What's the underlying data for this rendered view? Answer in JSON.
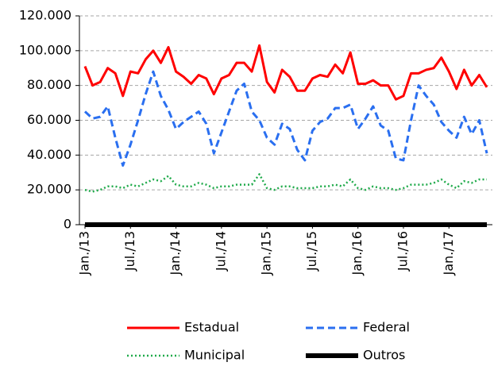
{
  "chart_data": {
    "type": "line",
    "categories": [
      "Jan./13",
      null,
      null,
      null,
      null,
      null,
      "Jul./13",
      null,
      null,
      null,
      null,
      null,
      "Jan./14",
      null,
      null,
      null,
      null,
      null,
      "Jul./14",
      null,
      null,
      null,
      null,
      null,
      "Jan./15",
      null,
      null,
      null,
      null,
      null,
      "Jul./15",
      null,
      null,
      null,
      null,
      null,
      "Jan./16",
      null,
      null,
      null,
      null,
      null,
      "Jul./16",
      null,
      null,
      null,
      null,
      null,
      "Jan./17",
      null,
      null,
      null,
      null,
      null
    ],
    "series": [
      {
        "name": "Estadual",
        "color": "#ff0000",
        "style": "solid",
        "values": [
          91000,
          80000,
          82000,
          90000,
          87000,
          74000,
          88000,
          87000,
          95000,
          100000,
          93000,
          102000,
          88000,
          85000,
          81000,
          86000,
          84000,
          75000,
          84000,
          86000,
          93000,
          93000,
          88000,
          103000,
          82000,
          76000,
          89000,
          85000,
          77000,
          77000,
          84000,
          86000,
          85000,
          92000,
          87000,
          99000,
          81000,
          81000,
          83000,
          80000,
          80000,
          72000,
          74000,
          87000,
          87000,
          89000,
          90000,
          96000,
          88000,
          78000,
          89000,
          80000,
          86000,
          79000
        ]
      },
      {
        "name": "Federal",
        "color": "#2a6ff0",
        "style": "dashed",
        "values": [
          65000,
          61000,
          62000,
          68000,
          50000,
          34000,
          46000,
          60000,
          75000,
          88000,
          74000,
          66000,
          55000,
          59000,
          62000,
          65000,
          58000,
          41000,
          53000,
          65000,
          77000,
          81000,
          65000,
          60000,
          50000,
          46000,
          58000,
          55000,
          43000,
          37000,
          54000,
          59000,
          61000,
          67000,
          67000,
          69000,
          55000,
          61000,
          68000,
          57000,
          54000,
          38000,
          37000,
          60000,
          80000,
          74000,
          69000,
          59000,
          54000,
          50000,
          62000,
          52000,
          60000,
          41000
        ]
      },
      {
        "name": "Municipal",
        "color": "#1faa4a",
        "style": "dotted",
        "values": [
          20000,
          19000,
          20000,
          22000,
          22000,
          21000,
          23000,
          22000,
          24000,
          26000,
          25000,
          28000,
          23000,
          22000,
          22000,
          24000,
          23000,
          21000,
          22000,
          22000,
          23000,
          23000,
          23000,
          29000,
          21000,
          20000,
          22000,
          22000,
          21000,
          21000,
          21000,
          22000,
          22000,
          23000,
          22000,
          26000,
          21000,
          20000,
          22000,
          21000,
          21000,
          20000,
          21000,
          23000,
          23000,
          23000,
          24000,
          26000,
          23000,
          21000,
          25000,
          24000,
          26000,
          26000
        ]
      },
      {
        "name": "Outros",
        "color": "#000000",
        "style": "heavy",
        "values": [
          0,
          0,
          0,
          0,
          0,
          0,
          0,
          0,
          0,
          0,
          0,
          0,
          0,
          0,
          0,
          0,
          0,
          0,
          0,
          0,
          0,
          0,
          0,
          0,
          0,
          0,
          0,
          0,
          0,
          0,
          0,
          0,
          0,
          0,
          0,
          0,
          0,
          0,
          0,
          0,
          0,
          0,
          0,
          0,
          0,
          0,
          0,
          0,
          0,
          0,
          0,
          0,
          0,
          0
        ]
      }
    ],
    "ylim": [
      0,
      120000
    ],
    "yticks": [
      {
        "value": 0,
        "label": "0"
      },
      {
        "value": 20000,
        "label": "20.000"
      },
      {
        "value": 40000,
        "label": "40.000"
      },
      {
        "value": 60000,
        "label": "60.000"
      },
      {
        "value": 80000,
        "label": "80.000"
      },
      {
        "value": 100000,
        "label": "100.000"
      },
      {
        "value": 120000,
        "label": "120.000"
      }
    ],
    "grid": true,
    "legend": "bottom"
  }
}
